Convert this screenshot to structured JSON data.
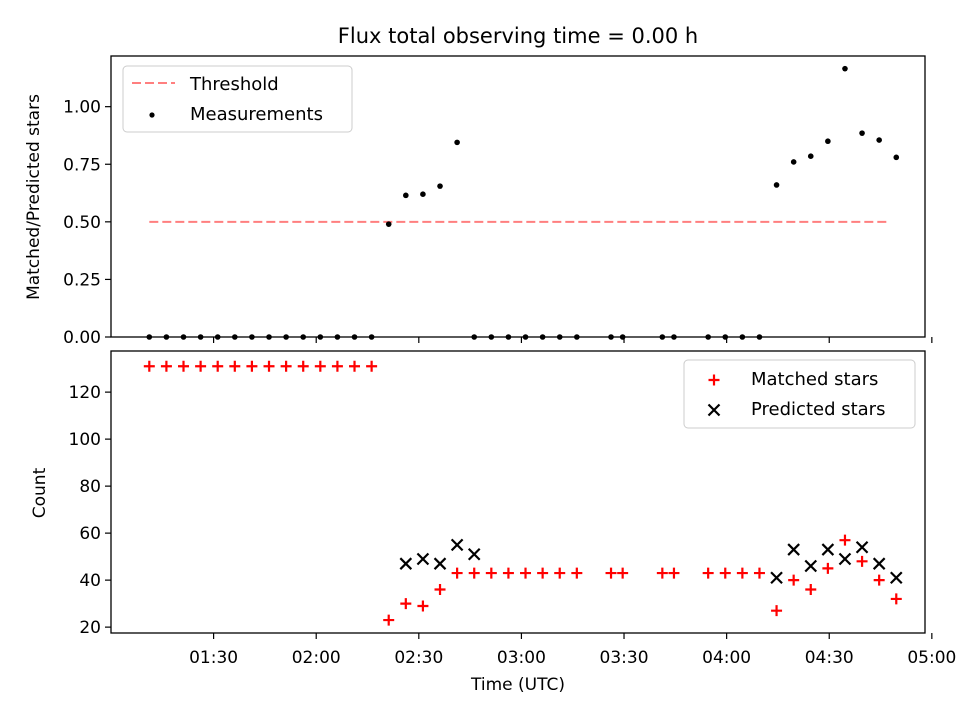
{
  "figure_title": "Flux total observing time = 0.00 h",
  "chart_data": [
    {
      "type": "scatter",
      "panel": "top",
      "ylabel": "Matched/Predicted stars",
      "ylim": [
        0,
        1.22
      ],
      "yticks": [
        "0.00",
        "0.25",
        "0.50",
        "0.75",
        "1.00"
      ],
      "ytick_values": [
        0,
        0.25,
        0.5,
        0.75,
        1.0
      ],
      "xlim_minutes": [
        60,
        298
      ],
      "grid": false,
      "legend_position": "top-left",
      "threshold": {
        "name": "Threshold",
        "color": "#ff7f7f",
        "value": 0.5,
        "x_start": 71.2,
        "x_end": 287.6
      },
      "measurements": {
        "name": "Measurements",
        "color": "#000000",
        "x": [
          71.2,
          76.2,
          81.2,
          86.2,
          91.2,
          96.2,
          101.2,
          106.2,
          111.2,
          116.2,
          121.2,
          126.2,
          131.2,
          136.2,
          141.2,
          146.2,
          151.2,
          156.2,
          161.2,
          166.2,
          171.2,
          176.2,
          181.2,
          186.2,
          191.2,
          196.2,
          206.2,
          209.6,
          221.2,
          224.6,
          234.6,
          239.6,
          244.6,
          249.6,
          254.6,
          259.6,
          264.6,
          269.6,
          274.6,
          279.6,
          284.6,
          289.6
        ],
        "y": [
          0,
          0,
          0,
          0,
          0,
          0,
          0,
          0,
          0,
          0,
          0,
          0,
          0,
          0,
          0.49,
          0.615,
          0.62,
          0.655,
          0.845,
          0,
          0,
          0,
          0,
          0,
          0,
          0,
          0,
          0,
          0,
          0,
          0,
          0,
          0,
          0,
          0.66,
          0.76,
          0.785,
          0.85,
          1.165,
          0.885,
          0.855,
          0.78
        ]
      }
    },
    {
      "type": "scatter",
      "panel": "bottom",
      "xlabel": "Time (UTC)",
      "ylabel": "Count",
      "ylim": [
        17.5,
        137.5
      ],
      "yticks": [
        "20",
        "40",
        "60",
        "80",
        "100",
        "120"
      ],
      "ytick_values": [
        20,
        40,
        60,
        80,
        100,
        120
      ],
      "xticks": [
        "01:30",
        "02:00",
        "02:30",
        "03:00",
        "03:30",
        "04:00",
        "04:30",
        "05:00"
      ],
      "xtick_values": [
        90,
        120,
        150,
        180,
        210,
        240,
        270,
        300
      ],
      "grid": false,
      "legend_position": "top-right",
      "series": [
        {
          "name": "Matched stars",
          "marker": "plus",
          "color": "#ff0000",
          "x": [
            71.2,
            76.2,
            81.2,
            86.2,
            91.2,
            96.2,
            101.2,
            106.2,
            111.2,
            116.2,
            121.2,
            126.2,
            131.2,
            136.2,
            141.2,
            146.2,
            151.2,
            156.2,
            161.2,
            166.2,
            171.2,
            176.2,
            181.2,
            186.2,
            191.2,
            196.2,
            206.2,
            209.6,
            221.2,
            224.6,
            234.6,
            239.6,
            244.6,
            249.6,
            254.6,
            259.6,
            264.6,
            269.6,
            274.6,
            279.6,
            284.6,
            289.6
          ],
          "y": [
            131,
            131,
            131,
            131,
            131,
            131,
            131,
            131,
            131,
            131,
            131,
            131,
            131,
            131,
            23,
            30,
            29,
            36,
            43,
            43,
            43,
            43,
            43,
            43,
            43,
            43,
            43,
            43,
            43,
            43,
            43,
            43,
            43,
            43,
            27,
            40,
            36,
            45,
            57,
            48,
            40,
            32
          ]
        },
        {
          "name": "Predicted stars",
          "marker": "x",
          "color": "#000000",
          "x": [
            146.2,
            151.2,
            156.2,
            161.2,
            166.2,
            254.6,
            259.6,
            264.6,
            269.6,
            274.6,
            279.6,
            284.6,
            289.6
          ],
          "y": [
            47,
            49,
            47,
            55,
            51,
            41,
            53,
            46,
            53,
            49,
            54,
            47,
            41
          ]
        }
      ]
    }
  ]
}
